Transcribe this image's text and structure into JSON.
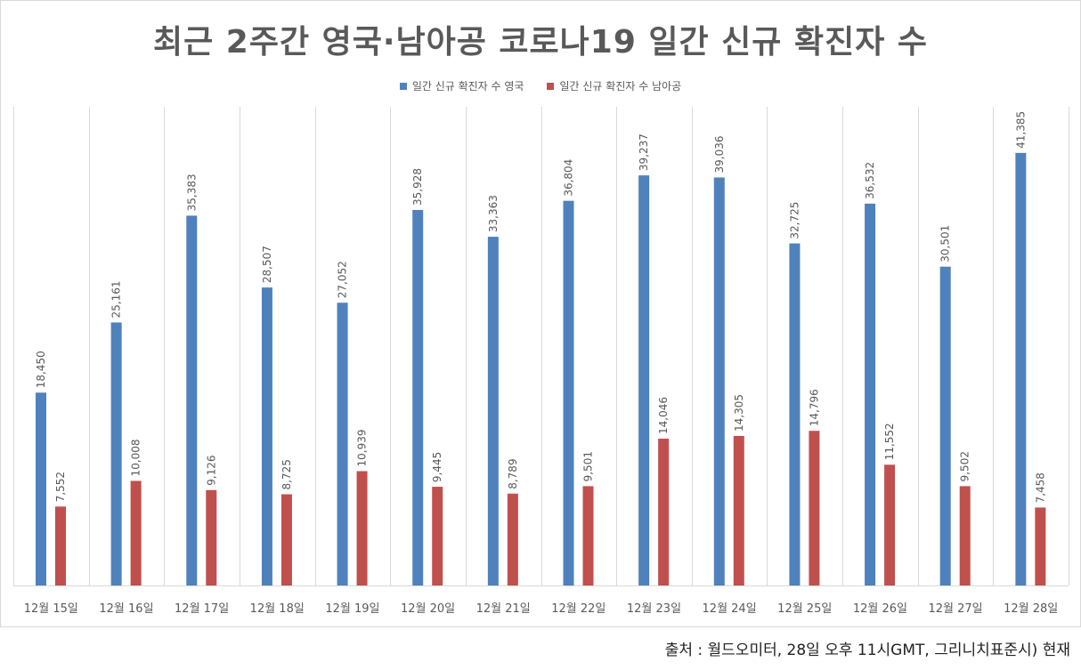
{
  "colors": {
    "uk": "#4f81bd",
    "sa": "#c0504d",
    "grid": "#d9d9d9",
    "text": "#595959"
  },
  "chart_data": {
    "type": "bar",
    "title": "최근 2주간 영국·남아공 코로나19 일간 신규 확진자 수",
    "categories": [
      "12월 15일",
      "12월 16일",
      "12월 17일",
      "12월 18일",
      "12월 19일",
      "12월 20일",
      "12월 21일",
      "12월 22일",
      "12월 23일",
      "12월 24일",
      "12월 25일",
      "12월 26일",
      "12월 27일",
      "12월 28일"
    ],
    "series": [
      {
        "name": "일간 신규 확진자 수 영국",
        "color": "#4f81bd",
        "values": [
          18450,
          25161,
          35383,
          28507,
          27052,
          35928,
          33363,
          36804,
          39237,
          39036,
          32725,
          36532,
          30501,
          41385
        ],
        "labels": [
          "18,450",
          "25,161",
          "35,383",
          "28,507",
          "27,052",
          "35,928",
          "33,363",
          "36,804",
          "39,237",
          "39,036",
          "32,725",
          "36,532",
          "30,501",
          "41,385"
        ]
      },
      {
        "name": "일간 신규 확진자 수 남아공",
        "color": "#c0504d",
        "values": [
          7552,
          10008,
          9126,
          8725,
          10939,
          9445,
          8789,
          9501,
          14046,
          14305,
          14796,
          11552,
          9502,
          7458
        ],
        "labels": [
          "7,552",
          "10,008",
          "9,126",
          "8,725",
          "10,939",
          "9,445",
          "8,789",
          "9,501",
          "14,046",
          "14,305",
          "14,796",
          "11,552",
          "9,502",
          "7,458"
        ]
      }
    ],
    "ylim": [
      0,
      45000
    ],
    "legend": "top-center",
    "grid": "vertical category separators"
  },
  "source": "출처 : 월드오미터, 28일 오후 11시GMT, 그리니치표준시) 현재"
}
